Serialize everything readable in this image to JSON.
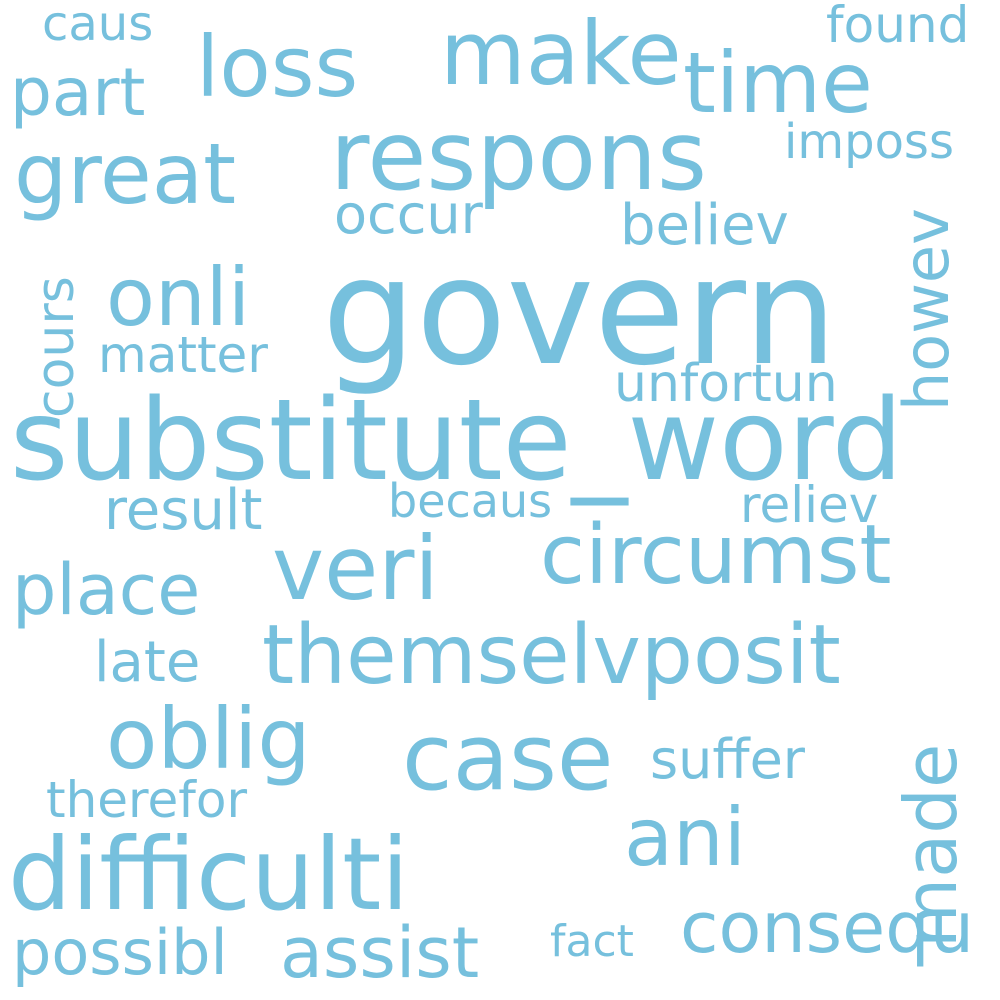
{
  "colors": {
    "background": "#ffffff",
    "word": "#76c0dd"
  },
  "words": {
    "govern": "govern",
    "substitute_word": "substitute_word",
    "respons": "respons",
    "difficulti": "difficulti",
    "circumst": "circumst",
    "themselvposit": "themselvposit",
    "case": "case",
    "veri": "veri",
    "oblig": "oblig",
    "make": "make",
    "loss": "loss",
    "time": "time",
    "great": "great",
    "ani": "ani",
    "onli": "onli",
    "consequ": "consequ",
    "assist": "assist",
    "place": "place",
    "part": "part",
    "possibl": "possibl",
    "made": "made",
    "howev": "howev",
    "believ": "believ",
    "occur": "occur",
    "result": "result",
    "suffer": "suffer",
    "unfortun": "unfortun",
    "matter": "matter",
    "late": "late",
    "therefor": "therefor",
    "reliev": "reliev",
    "becaus": "becaus",
    "imposs": "imposs",
    "found": "found",
    "caus": "caus",
    "fact": "fact",
    "cours": "cours"
  }
}
